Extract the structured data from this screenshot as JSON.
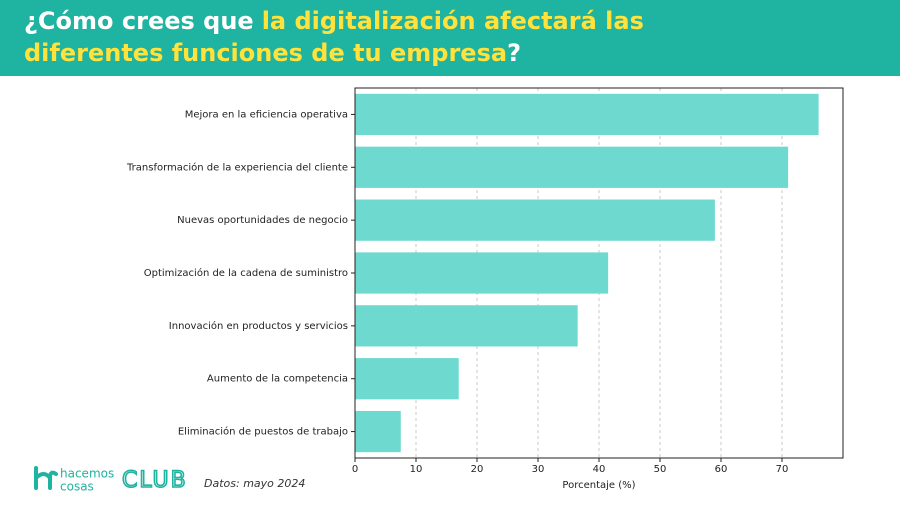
{
  "header": {
    "title_parts": [
      "¿Cómo crees que",
      "la digitalización afectará las",
      "diferentes funciones de tu empresa",
      "?"
    ]
  },
  "footer": {
    "logo_top": "hacemos",
    "logo_bottom": "cosas",
    "club": "CLUB",
    "source": "Datos: mayo 2024"
  },
  "chart_data": {
    "type": "bar",
    "orientation": "horizontal",
    "categories": [
      "Mejora en la eficiencia operativa",
      "Transformación de la experiencia del cliente",
      "Nuevas oportunidades de negocio",
      "Optimización de la cadena de suministro",
      "Innovación en productos y servicios",
      "Aumento de la competencia",
      "Eliminación de puestos de trabajo"
    ],
    "values": [
      76,
      71,
      59,
      41.5,
      36.5,
      17,
      7.5
    ],
    "color": "#6dd9cf",
    "xlabel": "Porcentaje (%)",
    "xlim": [
      0,
      80
    ],
    "xticks": [
      0,
      10,
      20,
      30,
      40,
      50,
      60,
      70
    ],
    "grid": true
  }
}
